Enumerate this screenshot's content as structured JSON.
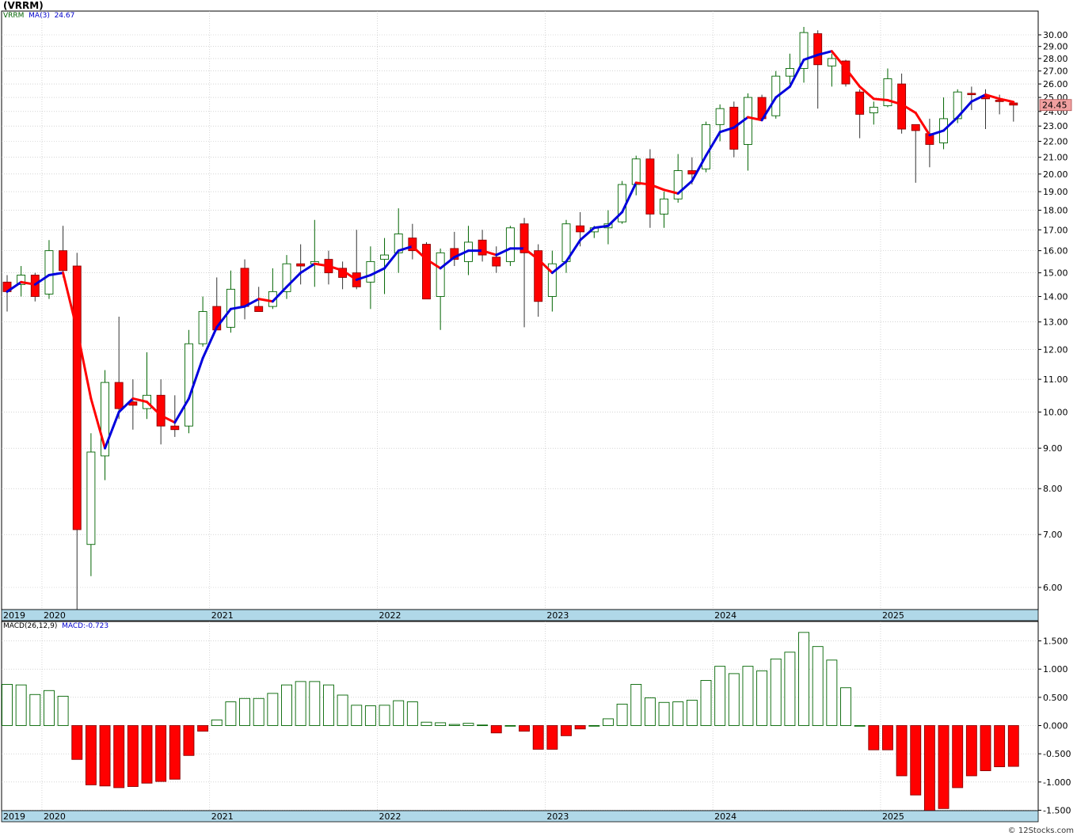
{
  "header": {
    "title": "(VRRM)",
    "ticker_label": "VRRM",
    "ma_label": "MA(3)",
    "ma_value": "24.67",
    "macd_label": "MACD(26,12,9)",
    "macd_value": "MACD:-0.723",
    "last_price": "24.45"
  },
  "footer": {
    "credit": "© 12Stocks.com"
  },
  "colors": {
    "up_body": "#ffffff",
    "up_edge": "#006400",
    "down_body": "#ff0000",
    "down_edge": "#8b0000",
    "ma_up": "#0000dd",
    "ma_down": "#ff0000",
    "grid": "#bbbbbb",
    "axis_band": "#b0d8e8",
    "price_badge": "#f0a0a0"
  },
  "chart_data": {
    "type": "candlestick",
    "interval": "monthly",
    "price_scale": "log",
    "price_ticks": [
      6,
      7,
      8,
      9,
      10,
      11,
      12,
      13,
      14,
      15,
      16,
      17,
      18,
      19,
      20,
      21,
      22,
      23,
      24,
      25,
      26,
      27,
      28,
      29,
      30
    ],
    "price_tick_labels": [
      "6.00",
      "7.00",
      "8.00",
      "9.00",
      "10.00",
      "11.00",
      "12.00",
      "13.00",
      "14.00",
      "15.00",
      "16.00",
      "17.00",
      "18.00",
      "19.00",
      "20.00",
      "21.00",
      "22.00",
      "23.00",
      "24.00",
      "25.00",
      "26.00",
      "27.00",
      "28.00",
      "29.00",
      "30.00"
    ],
    "x_labels": [
      {
        "label": "2019",
        "month": 0
      },
      {
        "label": "2020",
        "month": 3
      },
      {
        "label": "2021",
        "month": 15
      },
      {
        "label": "2022",
        "month": 27
      },
      {
        "label": "2023",
        "month": 39
      },
      {
        "label": "2024",
        "month": 51
      },
      {
        "label": "2025",
        "month": 63
      }
    ],
    "candles": [
      {
        "o": 14.6,
        "h": 14.9,
        "l": 13.4,
        "c": 14.2
      },
      {
        "o": 14.5,
        "h": 15.3,
        "l": 14.0,
        "c": 14.9
      },
      {
        "o": 14.9,
        "h": 15.0,
        "l": 13.8,
        "c": 14.0
      },
      {
        "o": 14.1,
        "h": 16.5,
        "l": 13.9,
        "c": 16.0
      },
      {
        "o": 16.0,
        "h": 17.2,
        "l": 14.8,
        "c": 15.1
      },
      {
        "o": 15.3,
        "h": 15.9,
        "l": 5.6,
        "c": 7.1
      },
      {
        "o": 6.8,
        "h": 9.4,
        "l": 6.2,
        "c": 8.9
      },
      {
        "o": 8.8,
        "h": 11.3,
        "l": 8.2,
        "c": 10.9
      },
      {
        "o": 10.9,
        "h": 13.2,
        "l": 9.8,
        "c": 10.1
      },
      {
        "o": 10.3,
        "h": 11.0,
        "l": 9.5,
        "c": 10.2
      },
      {
        "o": 10.1,
        "h": 11.9,
        "l": 9.8,
        "c": 10.5
      },
      {
        "o": 10.5,
        "h": 11.0,
        "l": 9.1,
        "c": 9.6
      },
      {
        "o": 9.6,
        "h": 10.5,
        "l": 9.3,
        "c": 9.5
      },
      {
        "o": 9.6,
        "h": 12.7,
        "l": 9.4,
        "c": 12.2
      },
      {
        "o": 12.2,
        "h": 14.0,
        "l": 12.1,
        "c": 13.4
      },
      {
        "o": 13.6,
        "h": 14.8,
        "l": 12.9,
        "c": 12.7
      },
      {
        "o": 12.8,
        "h": 15.1,
        "l": 12.6,
        "c": 14.3
      },
      {
        "o": 15.2,
        "h": 15.6,
        "l": 13.1,
        "c": 13.6
      },
      {
        "o": 13.6,
        "h": 14.4,
        "l": 13.4,
        "c": 13.4
      },
      {
        "o": 13.6,
        "h": 15.2,
        "l": 13.5,
        "c": 14.2
      },
      {
        "o": 14.2,
        "h": 15.8,
        "l": 13.9,
        "c": 15.4
      },
      {
        "o": 15.4,
        "h": 16.3,
        "l": 14.5,
        "c": 15.3
      },
      {
        "o": 15.4,
        "h": 17.5,
        "l": 14.4,
        "c": 15.5
      },
      {
        "o": 15.6,
        "h": 16.0,
        "l": 14.5,
        "c": 15.0
      },
      {
        "o": 15.2,
        "h": 15.5,
        "l": 14.3,
        "c": 14.8
      },
      {
        "o": 15.0,
        "h": 17.0,
        "l": 14.3,
        "c": 14.4
      },
      {
        "o": 14.6,
        "h": 16.2,
        "l": 13.5,
        "c": 15.5
      },
      {
        "o": 15.6,
        "h": 16.6,
        "l": 14.1,
        "c": 15.8
      },
      {
        "o": 15.9,
        "h": 18.1,
        "l": 15.0,
        "c": 16.8
      },
      {
        "o": 16.6,
        "h": 17.3,
        "l": 15.6,
        "c": 16.0
      },
      {
        "o": 16.3,
        "h": 16.4,
        "l": 13.9,
        "c": 13.9
      },
      {
        "o": 14.0,
        "h": 16.1,
        "l": 12.7,
        "c": 15.9
      },
      {
        "o": 16.1,
        "h": 16.9,
        "l": 15.3,
        "c": 15.6
      },
      {
        "o": 15.5,
        "h": 17.2,
        "l": 14.9,
        "c": 16.4
      },
      {
        "o": 16.5,
        "h": 17.0,
        "l": 15.5,
        "c": 15.8
      },
      {
        "o": 15.7,
        "h": 16.2,
        "l": 15.0,
        "c": 15.3
      },
      {
        "o": 15.5,
        "h": 17.2,
        "l": 15.3,
        "c": 17.1
      },
      {
        "o": 17.3,
        "h": 17.6,
        "l": 12.8,
        "c": 15.9
      },
      {
        "o": 16.0,
        "h": 16.3,
        "l": 13.2,
        "c": 13.8
      },
      {
        "o": 14.0,
        "h": 16.0,
        "l": 13.4,
        "c": 15.4
      },
      {
        "o": 15.5,
        "h": 17.5,
        "l": 15.0,
        "c": 17.3
      },
      {
        "o": 17.2,
        "h": 17.9,
        "l": 16.2,
        "c": 16.9
      },
      {
        "o": 16.9,
        "h": 17.2,
        "l": 16.6,
        "c": 17.1
      },
      {
        "o": 17.1,
        "h": 18.0,
        "l": 16.3,
        "c": 17.3
      },
      {
        "o": 17.4,
        "h": 19.6,
        "l": 17.3,
        "c": 19.4
      },
      {
        "o": 19.4,
        "h": 21.1,
        "l": 18.8,
        "c": 20.9
      },
      {
        "o": 20.9,
        "h": 21.5,
        "l": 17.1,
        "c": 17.8
      },
      {
        "o": 17.8,
        "h": 19.0,
        "l": 17.1,
        "c": 18.6
      },
      {
        "o": 18.6,
        "h": 21.2,
        "l": 18.4,
        "c": 20.2
      },
      {
        "o": 20.2,
        "h": 21.0,
        "l": 19.4,
        "c": 20.0
      },
      {
        "o": 20.3,
        "h": 23.3,
        "l": 20.1,
        "c": 23.1
      },
      {
        "o": 23.1,
        "h": 24.5,
        "l": 22.0,
        "c": 24.2
      },
      {
        "o": 24.3,
        "h": 24.7,
        "l": 21.0,
        "c": 21.5
      },
      {
        "o": 21.8,
        "h": 25.3,
        "l": 20.2,
        "c": 25.0
      },
      {
        "o": 25.0,
        "h": 25.2,
        "l": 23.5,
        "c": 23.5
      },
      {
        "o": 23.7,
        "h": 27.0,
        "l": 23.5,
        "c": 26.6
      },
      {
        "o": 26.6,
        "h": 28.4,
        "l": 26.0,
        "c": 27.2
      },
      {
        "o": 27.2,
        "h": 30.7,
        "l": 26.1,
        "c": 30.2
      },
      {
        "o": 30.1,
        "h": 30.4,
        "l": 24.2,
        "c": 27.5
      },
      {
        "o": 27.4,
        "h": 28.4,
        "l": 25.8,
        "c": 28.0
      },
      {
        "o": 27.8,
        "h": 27.9,
        "l": 25.8,
        "c": 26.0
      },
      {
        "o": 25.4,
        "h": 25.6,
        "l": 22.2,
        "c": 23.8
      },
      {
        "o": 23.9,
        "h": 24.7,
        "l": 23.1,
        "c": 24.3
      },
      {
        "o": 24.4,
        "h": 27.2,
        "l": 24.3,
        "c": 26.4
      },
      {
        "o": 26.0,
        "h": 26.8,
        "l": 22.5,
        "c": 22.8
      },
      {
        "o": 23.1,
        "h": 23.1,
        "l": 19.5,
        "c": 22.7
      },
      {
        "o": 22.5,
        "h": 23.5,
        "l": 20.4,
        "c": 21.8
      },
      {
        "o": 21.9,
        "h": 25.0,
        "l": 21.5,
        "c": 23.5
      },
      {
        "o": 23.5,
        "h": 25.6,
        "l": 23.2,
        "c": 25.4
      },
      {
        "o": 25.3,
        "h": 25.8,
        "l": 24.1,
        "c": 25.2
      },
      {
        "o": 25.1,
        "h": 25.6,
        "l": 22.8,
        "c": 24.9
      },
      {
        "o": 24.8,
        "h": 25.2,
        "l": 23.8,
        "c": 24.7
      },
      {
        "o": 24.6,
        "h": 24.7,
        "l": 23.3,
        "c": 24.45
      }
    ],
    "ma3": [
      14.2,
      14.6,
      14.5,
      14.9,
      15.0,
      12.7,
      10.4,
      9.0,
      10.0,
      10.4,
      10.3,
      9.9,
      9.7,
      10.4,
      11.7,
      12.8,
      13.5,
      13.6,
      13.9,
      13.8,
      14.4,
      15.0,
      15.4,
      15.3,
      15.1,
      14.7,
      14.9,
      15.2,
      16.0,
      16.2,
      15.6,
      15.2,
      15.7,
      16.0,
      16.0,
      15.8,
      16.1,
      16.1,
      15.6,
      15.0,
      15.5,
      16.5,
      17.1,
      17.2,
      17.9,
      19.5,
      19.4,
      19.1,
      18.9,
      19.6,
      21.1,
      22.6,
      22.9,
      23.6,
      23.4,
      25.0,
      25.8,
      27.9,
      28.3,
      28.6,
      27.2,
      25.8,
      24.9,
      24.8,
      24.5,
      23.9,
      22.4,
      22.7,
      23.6,
      24.7,
      25.2,
      24.9,
      24.67
    ],
    "macd_ticks": [
      -1.5,
      -1.0,
      -0.5,
      0.0,
      0.5,
      1.0,
      1.5
    ],
    "macd_tick_labels": [
      "-1.500",
      "-1.000",
      "-0.500",
      "0.000",
      "0.500",
      "1.000",
      "1.500"
    ],
    "macd_hist": [
      0.73,
      0.72,
      0.55,
      0.62,
      0.52,
      -0.6,
      -1.05,
      -1.07,
      -1.1,
      -1.08,
      -1.02,
      -0.99,
      -0.95,
      -0.53,
      -0.1,
      0.1,
      0.42,
      0.48,
      0.48,
      0.57,
      0.72,
      0.78,
      0.78,
      0.72,
      0.54,
      0.36,
      0.35,
      0.36,
      0.44,
      0.42,
      0.06,
      0.05,
      0.02,
      0.04,
      0.01,
      -0.13,
      0.0,
      -0.1,
      -0.42,
      -0.42,
      -0.18,
      -0.06,
      0.0,
      0.12,
      0.38,
      0.73,
      0.49,
      0.41,
      0.42,
      0.45,
      0.8,
      1.05,
      0.92,
      1.05,
      0.97,
      1.18,
      1.3,
      1.65,
      1.4,
      1.16,
      0.67,
      0.0,
      -0.43,
      -0.43,
      -0.89,
      -1.23,
      -1.52,
      -1.47,
      -1.1,
      -0.89,
      -0.8,
      -0.73,
      -0.723
    ]
  }
}
